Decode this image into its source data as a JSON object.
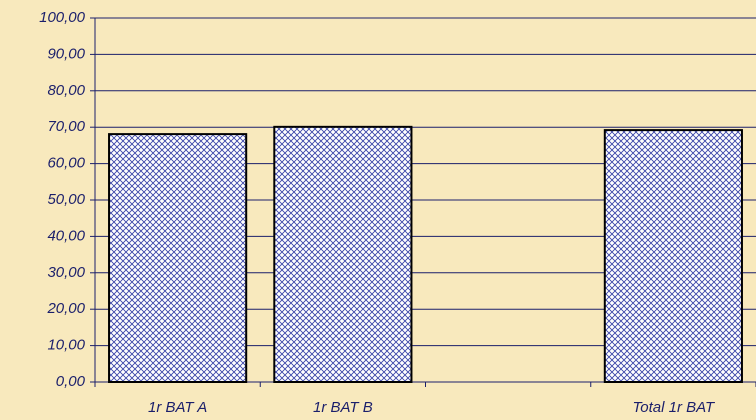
{
  "chart_data": {
    "type": "bar",
    "categories": [
      "1r BAT A",
      "1r BAT B",
      null,
      "Total 1r BAT"
    ],
    "values": [
      68.1,
      70.1,
      null,
      69.2
    ],
    "color": "#3a44a8",
    "ylim": [
      0,
      100
    ],
    "yticks": [
      {
        "value": 0,
        "label": "0,00"
      },
      {
        "value": 10,
        "label": "10,00"
      },
      {
        "value": 20,
        "label": "20,00"
      },
      {
        "value": 30,
        "label": "30,00"
      },
      {
        "value": 40,
        "label": "40,00"
      },
      {
        "value": 50,
        "label": "50,00"
      },
      {
        "value": 60,
        "label": "60,00"
      },
      {
        "value": 70,
        "label": "70,00"
      },
      {
        "value": 80,
        "label": "80,00"
      },
      {
        "value": 90,
        "label": "90,00"
      },
      {
        "value": 100,
        "label": "100,00"
      }
    ],
    "grid": true
  }
}
